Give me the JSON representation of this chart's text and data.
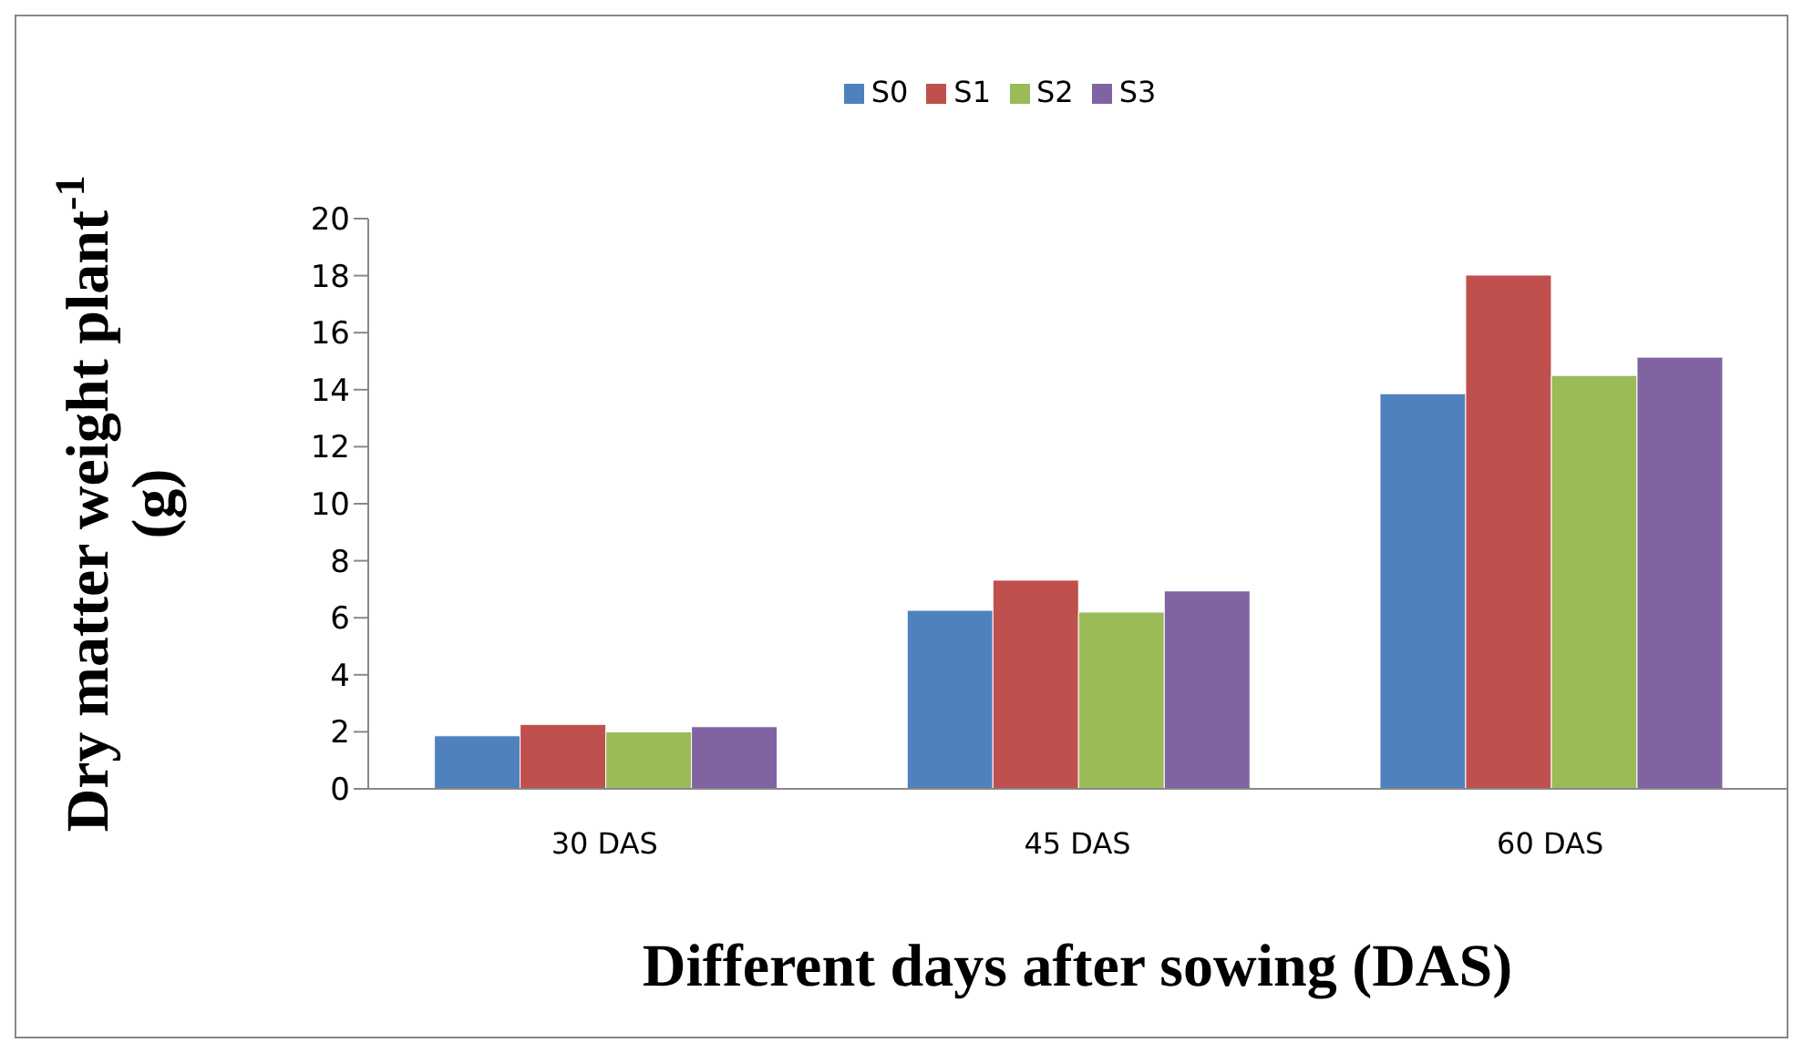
{
  "chart_data": {
    "type": "bar",
    "xlabel": "Different days after sowing (DAS)",
    "ylabel": "Dry matter weight plant$^{-1}$ (g)",
    "categories": [
      "30 DAS",
      "45 DAS",
      "60 DAS"
    ],
    "series": [
      {
        "name": "S0",
        "color": "#4f81bd",
        "values": [
          1.86,
          6.26,
          13.86
        ]
      },
      {
        "name": "S1",
        "color": "#c0504d",
        "values": [
          2.26,
          7.32,
          18.02
        ]
      },
      {
        "name": "S2",
        "color": "#9bbb59",
        "values": [
          2.0,
          6.2,
          14.5
        ]
      },
      {
        "name": "S3",
        "color": "#8064a2",
        "values": [
          2.18,
          6.94,
          15.14
        ]
      }
    ],
    "ylim": [
      0,
      20
    ],
    "yticks": [
      0,
      2,
      4,
      6,
      8,
      10,
      12,
      14,
      16,
      18,
      20
    ],
    "grid": false,
    "legend": "top"
  }
}
